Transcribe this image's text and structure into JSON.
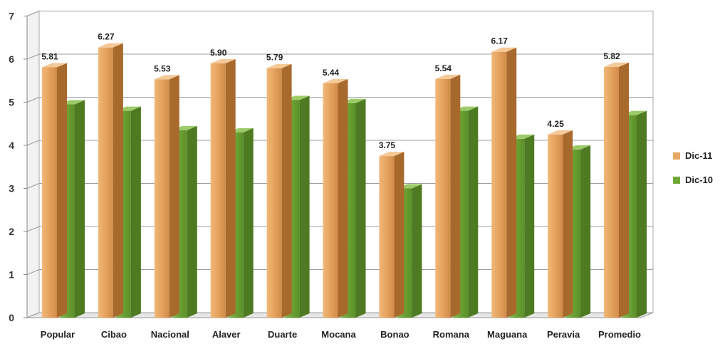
{
  "chart_data": {
    "type": "bar",
    "categories": [
      "Popular",
      "Cibao",
      "Nacional",
      "Alaver",
      "Duarte",
      "Mocana",
      "Bonao",
      "Romana",
      "Maguana",
      "Peravia",
      "Promedio"
    ],
    "series": [
      {
        "name": "Dic-11",
        "values": [
          5.81,
          6.27,
          5.53,
          5.9,
          5.79,
          5.44,
          3.75,
          5.54,
          6.17,
          4.25,
          5.82
        ],
        "labels": [
          "5.81",
          "6.27",
          "5.53",
          "5.90",
          "5.79",
          "5.44",
          "3.75",
          "5.54",
          "6.17",
          "4.25",
          "5.82"
        ],
        "color": "#E8A864"
      },
      {
        "name": "Dic-10",
        "values": [
          4.95,
          4.8,
          4.35,
          4.3,
          5.05,
          4.98,
          3.0,
          4.8,
          4.15,
          3.9,
          4.7
        ],
        "color": "#70A838"
      }
    ],
    "yticks": [
      "0",
      "1",
      "2",
      "3",
      "4",
      "5",
      "6",
      "7"
    ],
    "ylim": [
      0,
      7
    ],
    "grid": true,
    "legend_position": "right",
    "title": "",
    "xlabel": "",
    "ylabel": ""
  }
}
